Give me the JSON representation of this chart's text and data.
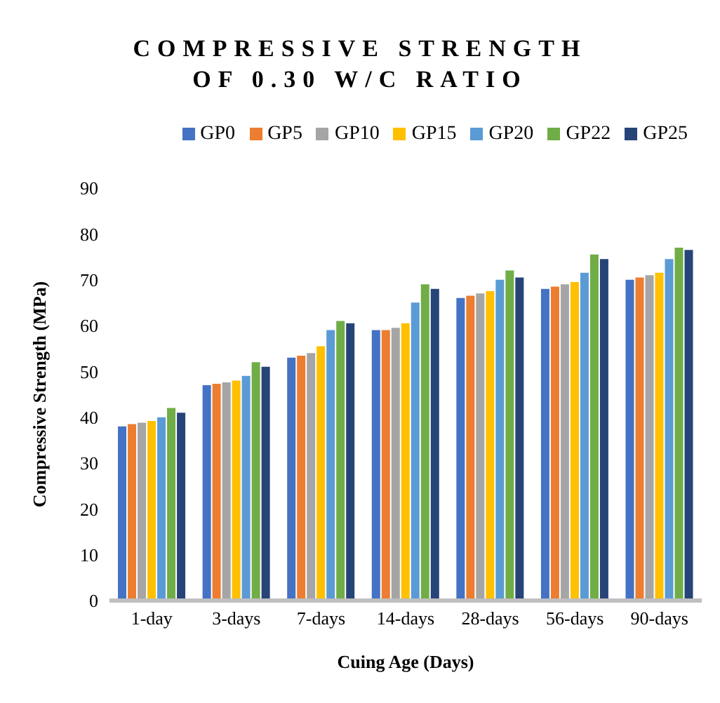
{
  "chart_data": {
    "type": "bar",
    "title": "COMPRESSIVE STRENGTH OF 0.30 W/C RATIO",
    "xlabel": "Cuing Age (Days)",
    "ylabel": "Compressive Strength (MPa)",
    "categories": [
      "1-day",
      "3-days",
      "7-days",
      "14-days",
      "28-days",
      "56-days",
      "90-days"
    ],
    "series": [
      {
        "name": "GP0",
        "color": "#4472c4",
        "values": [
          38,
          47,
          53,
          59,
          66,
          68,
          70
        ]
      },
      {
        "name": "GP5",
        "color": "#ed7d31",
        "values": [
          38.5,
          47.3,
          53.4,
          59,
          66.5,
          68.5,
          70.5
        ]
      },
      {
        "name": "GP10",
        "color": "#a5a5a5",
        "values": [
          38.8,
          47.6,
          54,
          59.5,
          67,
          69,
          71
        ]
      },
      {
        "name": "GP15",
        "color": "#ffc000",
        "values": [
          39.2,
          48,
          55.5,
          60.5,
          67.5,
          69.5,
          71.5
        ]
      },
      {
        "name": "GP20",
        "color": "#5b9bd5",
        "values": [
          40,
          49,
          59,
          65,
          70,
          71.5,
          74.5
        ]
      },
      {
        "name": "GP22",
        "color": "#70ad47",
        "values": [
          42,
          52,
          61,
          69,
          72,
          75.5,
          77
        ]
      },
      {
        "name": "GP25",
        "color": "#264478",
        "values": [
          41,
          51,
          60.5,
          68,
          70.5,
          74.5,
          76.5
        ]
      }
    ],
    "ylim": [
      0,
      90
    ],
    "yticks": [
      0,
      10,
      20,
      30,
      40,
      50,
      60,
      70,
      80,
      90
    ],
    "grid": false,
    "legend": "top"
  }
}
